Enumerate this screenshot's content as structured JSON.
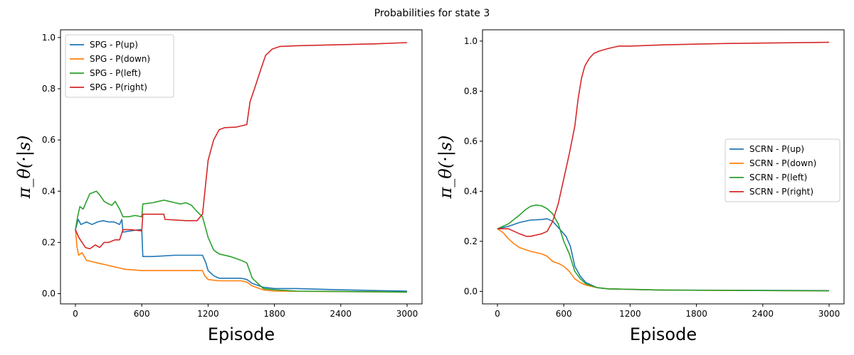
{
  "figure": {
    "title": "Probabilities for state 3"
  },
  "chart_data": [
    {
      "type": "line",
      "xlabel": "Episode",
      "ylabel": "π_θ(·|s)",
      "xlim": [
        -135,
        3135
      ],
      "ylim": [
        -0.04,
        1.03
      ],
      "xticks": [
        "0",
        "600",
        "1200",
        "1800",
        "2400",
        "3000"
      ],
      "yticks": [
        "0.0",
        "0.2",
        "0.4",
        "0.6",
        "0.8",
        "1.0"
      ],
      "legend": "top-left",
      "grid": false,
      "series": [
        {
          "name": "SPG - P(up)",
          "color": "#1f77b4",
          "points": [
            [
              0,
              0.25
            ],
            [
              25,
              0.29
            ],
            [
              50,
              0.27
            ],
            [
              100,
              0.28
            ],
            [
              150,
              0.27
            ],
            [
              200,
              0.28
            ],
            [
              250,
              0.285
            ],
            [
              300,
              0.28
            ],
            [
              350,
              0.28
            ],
            [
              400,
              0.27
            ],
            [
              420,
              0.29
            ],
            [
              430,
              0.24
            ],
            [
              500,
              0.245
            ],
            [
              580,
              0.25
            ],
            [
              600,
              0.25
            ],
            [
              610,
              0.145
            ],
            [
              700,
              0.145
            ],
            [
              900,
              0.15
            ],
            [
              1000,
              0.15
            ],
            [
              1100,
              0.15
            ],
            [
              1150,
              0.15
            ],
            [
              1180,
              0.12
            ],
            [
              1200,
              0.09
            ],
            [
              1250,
              0.07
            ],
            [
              1300,
              0.06
            ],
            [
              1400,
              0.06
            ],
            [
              1500,
              0.06
            ],
            [
              1550,
              0.055
            ],
            [
              1600,
              0.04
            ],
            [
              1700,
              0.025
            ],
            [
              1800,
              0.02
            ],
            [
              2000,
              0.02
            ],
            [
              2400,
              0.015
            ],
            [
              2700,
              0.012
            ],
            [
              3000,
              0.01
            ]
          ]
        },
        {
          "name": "SPG - P(down)",
          "color": "#ff7f0e",
          "points": [
            [
              0,
              0.25
            ],
            [
              15,
              0.18
            ],
            [
              30,
              0.15
            ],
            [
              60,
              0.16
            ],
            [
              100,
              0.13
            ],
            [
              150,
              0.125
            ],
            [
              200,
              0.12
            ],
            [
              300,
              0.11
            ],
            [
              350,
              0.105
            ],
            [
              400,
              0.1
            ],
            [
              450,
              0.095
            ],
            [
              600,
              0.09
            ],
            [
              900,
              0.09
            ],
            [
              1150,
              0.09
            ],
            [
              1170,
              0.07
            ],
            [
              1200,
              0.055
            ],
            [
              1300,
              0.05
            ],
            [
              1500,
              0.05
            ],
            [
              1550,
              0.045
            ],
            [
              1600,
              0.03
            ],
            [
              1700,
              0.015
            ],
            [
              1800,
              0.01
            ],
            [
              2400,
              0.008
            ],
            [
              3000,
              0.006
            ]
          ]
        },
        {
          "name": "SPG - P(left)",
          "color": "#2ca02c",
          "points": [
            [
              0,
              0.25
            ],
            [
              20,
              0.3
            ],
            [
              40,
              0.34
            ],
            [
              70,
              0.33
            ],
            [
              100,
              0.36
            ],
            [
              130,
              0.39
            ],
            [
              160,
              0.395
            ],
            [
              190,
              0.4
            ],
            [
              220,
              0.385
            ],
            [
              260,
              0.36
            ],
            [
              300,
              0.35
            ],
            [
              330,
              0.345
            ],
            [
              360,
              0.36
            ],
            [
              400,
              0.33
            ],
            [
              430,
              0.3
            ],
            [
              480,
              0.3
            ],
            [
              540,
              0.305
            ],
            [
              600,
              0.3
            ],
            [
              610,
              0.35
            ],
            [
              700,
              0.355
            ],
            [
              750,
              0.36
            ],
            [
              800,
              0.365
            ],
            [
              850,
              0.36
            ],
            [
              900,
              0.355
            ],
            [
              950,
              0.35
            ],
            [
              1000,
              0.355
            ],
            [
              1050,
              0.345
            ],
            [
              1100,
              0.32
            ],
            [
              1150,
              0.3
            ],
            [
              1200,
              0.22
            ],
            [
              1250,
              0.17
            ],
            [
              1300,
              0.155
            ],
            [
              1400,
              0.145
            ],
            [
              1500,
              0.13
            ],
            [
              1550,
              0.12
            ],
            [
              1600,
              0.06
            ],
            [
              1700,
              0.02
            ],
            [
              1800,
              0.015
            ],
            [
              2000,
              0.01
            ],
            [
              2500,
              0.008
            ],
            [
              3000,
              0.006
            ]
          ]
        },
        {
          "name": "SPG - P(right)",
          "color": "#d62728",
          "points": [
            [
              0,
              0.25
            ],
            [
              30,
              0.22
            ],
            [
              60,
              0.2
            ],
            [
              90,
              0.18
            ],
            [
              130,
              0.175
            ],
            [
              180,
              0.19
            ],
            [
              220,
              0.18
            ],
            [
              260,
              0.2
            ],
            [
              300,
              0.2
            ],
            [
              330,
              0.205
            ],
            [
              360,
              0.21
            ],
            [
              400,
              0.21
            ],
            [
              430,
              0.25
            ],
            [
              500,
              0.25
            ],
            [
              600,
              0.245
            ],
            [
              610,
              0.31
            ],
            [
              800,
              0.31
            ],
            [
              810,
              0.29
            ],
            [
              1000,
              0.285
            ],
            [
              1100,
              0.285
            ],
            [
              1150,
              0.31
            ],
            [
              1200,
              0.52
            ],
            [
              1250,
              0.6
            ],
            [
              1300,
              0.64
            ],
            [
              1350,
              0.648
            ],
            [
              1450,
              0.65
            ],
            [
              1550,
              0.66
            ],
            [
              1580,
              0.75
            ],
            [
              1620,
              0.8
            ],
            [
              1680,
              0.88
            ],
            [
              1720,
              0.93
            ],
            [
              1780,
              0.955
            ],
            [
              1850,
              0.965
            ],
            [
              2000,
              0.968
            ],
            [
              2400,
              0.972
            ],
            [
              2700,
              0.975
            ],
            [
              3000,
              0.98
            ]
          ]
        }
      ]
    },
    {
      "type": "line",
      "xlabel": "Episode",
      "ylabel": "π_θ(·|s)",
      "xlim": [
        -135,
        3135
      ],
      "ylim": [
        -0.05,
        1.045
      ],
      "xticks": [
        "0",
        "600",
        "1200",
        "1800",
        "2400",
        "3000"
      ],
      "yticks": [
        "0.0",
        "0.2",
        "0.4",
        "0.6",
        "0.8",
        "1.0"
      ],
      "legend": "center-right",
      "grid": false,
      "series": [
        {
          "name": "SCRN - P(up)",
          "color": "#1f77b4",
          "points": [
            [
              0,
              0.25
            ],
            [
              100,
              0.26
            ],
            [
              200,
              0.275
            ],
            [
              300,
              0.285
            ],
            [
              400,
              0.287
            ],
            [
              450,
              0.29
            ],
            [
              500,
              0.28
            ],
            [
              560,
              0.25
            ],
            [
              620,
              0.22
            ],
            [
              660,
              0.18
            ],
            [
              700,
              0.1
            ],
            [
              750,
              0.06
            ],
            [
              800,
              0.035
            ],
            [
              900,
              0.015
            ],
            [
              1000,
              0.01
            ],
            [
              1200,
              0.008
            ],
            [
              1500,
              0.005
            ],
            [
              3000,
              0.003
            ]
          ]
        },
        {
          "name": "SCRN - P(down)",
          "color": "#ff7f0e",
          "points": [
            [
              0,
              0.25
            ],
            [
              50,
              0.235
            ],
            [
              100,
              0.21
            ],
            [
              150,
              0.19
            ],
            [
              200,
              0.175
            ],
            [
              300,
              0.16
            ],
            [
              400,
              0.15
            ],
            [
              450,
              0.14
            ],
            [
              500,
              0.12
            ],
            [
              560,
              0.11
            ],
            [
              600,
              0.1
            ],
            [
              650,
              0.08
            ],
            [
              700,
              0.05
            ],
            [
              750,
              0.035
            ],
            [
              800,
              0.025
            ],
            [
              900,
              0.015
            ],
            [
              1000,
              0.01
            ],
            [
              1500,
              0.005
            ],
            [
              3000,
              0.002
            ]
          ]
        },
        {
          "name": "SCRN - P(left)",
          "color": "#2ca02c",
          "points": [
            [
              0,
              0.25
            ],
            [
              100,
              0.27
            ],
            [
              200,
              0.305
            ],
            [
              250,
              0.325
            ],
            [
              300,
              0.34
            ],
            [
              350,
              0.345
            ],
            [
              400,
              0.342
            ],
            [
              450,
              0.33
            ],
            [
              500,
              0.31
            ],
            [
              550,
              0.27
            ],
            [
              600,
              0.2
            ],
            [
              650,
              0.15
            ],
            [
              700,
              0.08
            ],
            [
              750,
              0.05
            ],
            [
              800,
              0.03
            ],
            [
              900,
              0.015
            ],
            [
              1000,
              0.01
            ],
            [
              1500,
              0.005
            ],
            [
              3000,
              0.002
            ]
          ]
        },
        {
          "name": "SCRN - P(right)",
          "color": "#d62728",
          "points": [
            [
              0,
              0.25
            ],
            [
              100,
              0.25
            ],
            [
              200,
              0.23
            ],
            [
              260,
              0.22
            ],
            [
              300,
              0.22
            ],
            [
              350,
              0.225
            ],
            [
              400,
              0.23
            ],
            [
              450,
              0.24
            ],
            [
              500,
              0.28
            ],
            [
              550,
              0.35
            ],
            [
              600,
              0.45
            ],
            [
              650,
              0.55
            ],
            [
              700,
              0.66
            ],
            [
              730,
              0.77
            ],
            [
              760,
              0.85
            ],
            [
              790,
              0.9
            ],
            [
              830,
              0.93
            ],
            [
              870,
              0.95
            ],
            [
              920,
              0.96
            ],
            [
              1000,
              0.97
            ],
            [
              1100,
              0.98
            ],
            [
              1200,
              0.98
            ],
            [
              1500,
              0.985
            ],
            [
              2000,
              0.99
            ],
            [
              3000,
              0.995
            ]
          ]
        }
      ]
    }
  ]
}
